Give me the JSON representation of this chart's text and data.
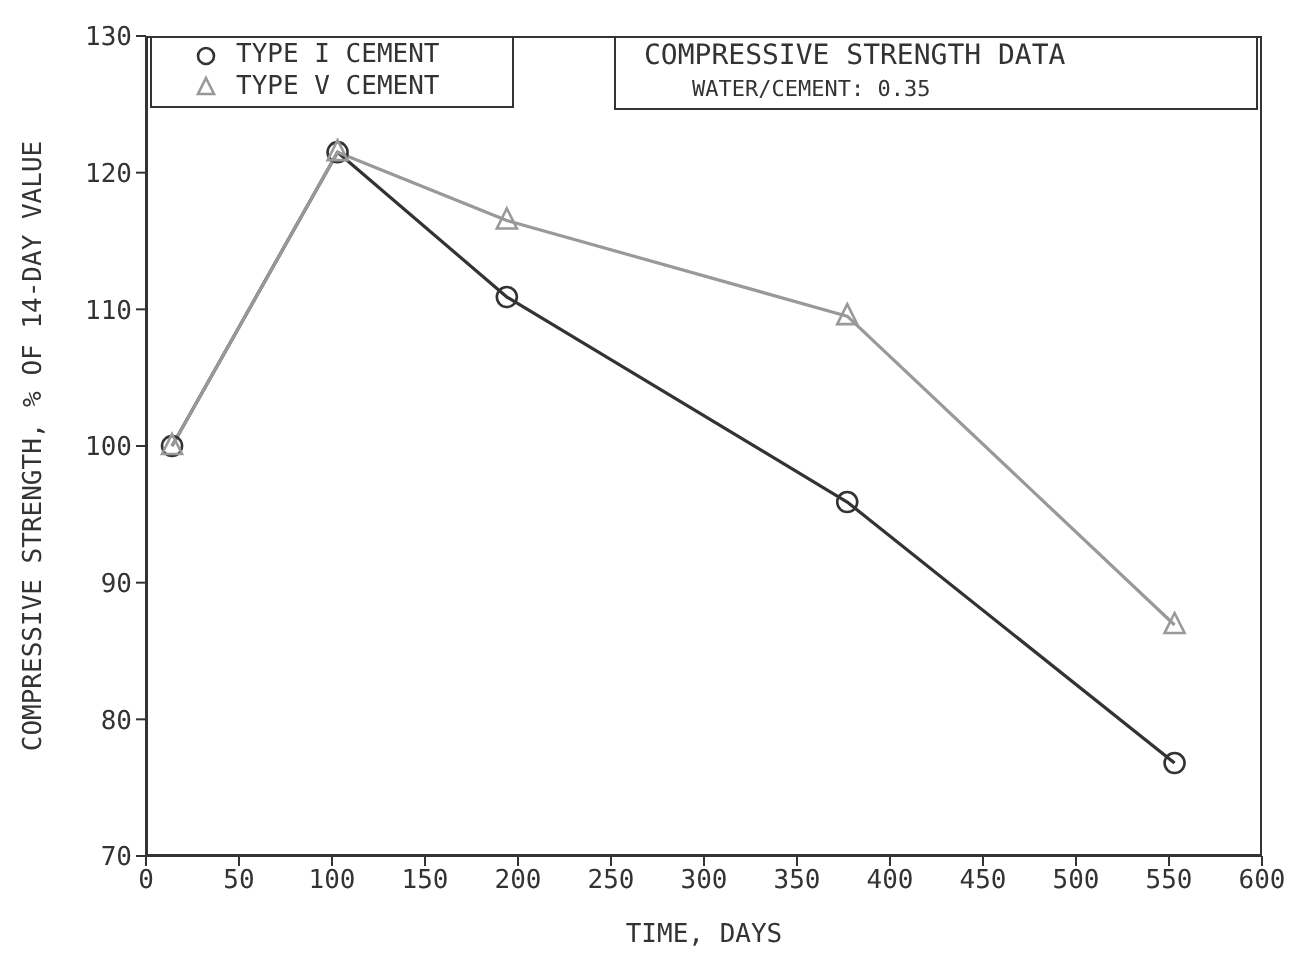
{
  "chart_data": {
    "type": "line",
    "title": "COMPRESSIVE STRENGTH DATA",
    "subtitle": "WATER/CEMENT: 0.35",
    "xlabel": "TIME, DAYS",
    "ylabel": "COMPRESSIVE STRENGTH, % OF 14-DAY VALUE",
    "series": [
      {
        "name": "TYPE I CEMENT",
        "color": "#333333",
        "marker": "circle",
        "x": [
          14,
          103,
          194,
          377,
          553
        ],
        "values": [
          100,
          121.5,
          110.9,
          95.9,
          76.8
        ]
      },
      {
        "name": "TYPE V CEMENT",
        "color": "#999999",
        "marker": "triangle",
        "x": [
          14,
          103,
          194,
          377,
          553
        ],
        "values": [
          100,
          121.5,
          116.5,
          109.5,
          86.9
        ]
      }
    ],
    "xlim": [
      0,
      600
    ],
    "xticks": [
      0,
      50,
      100,
      150,
      200,
      250,
      300,
      350,
      400,
      450,
      500,
      550,
      600
    ],
    "ylim": [
      70,
      130
    ],
    "yticks": [
      70,
      80,
      90,
      100,
      110,
      120,
      130
    ],
    "grid": false,
    "legend": "top left",
    "line_style": "solid"
  }
}
